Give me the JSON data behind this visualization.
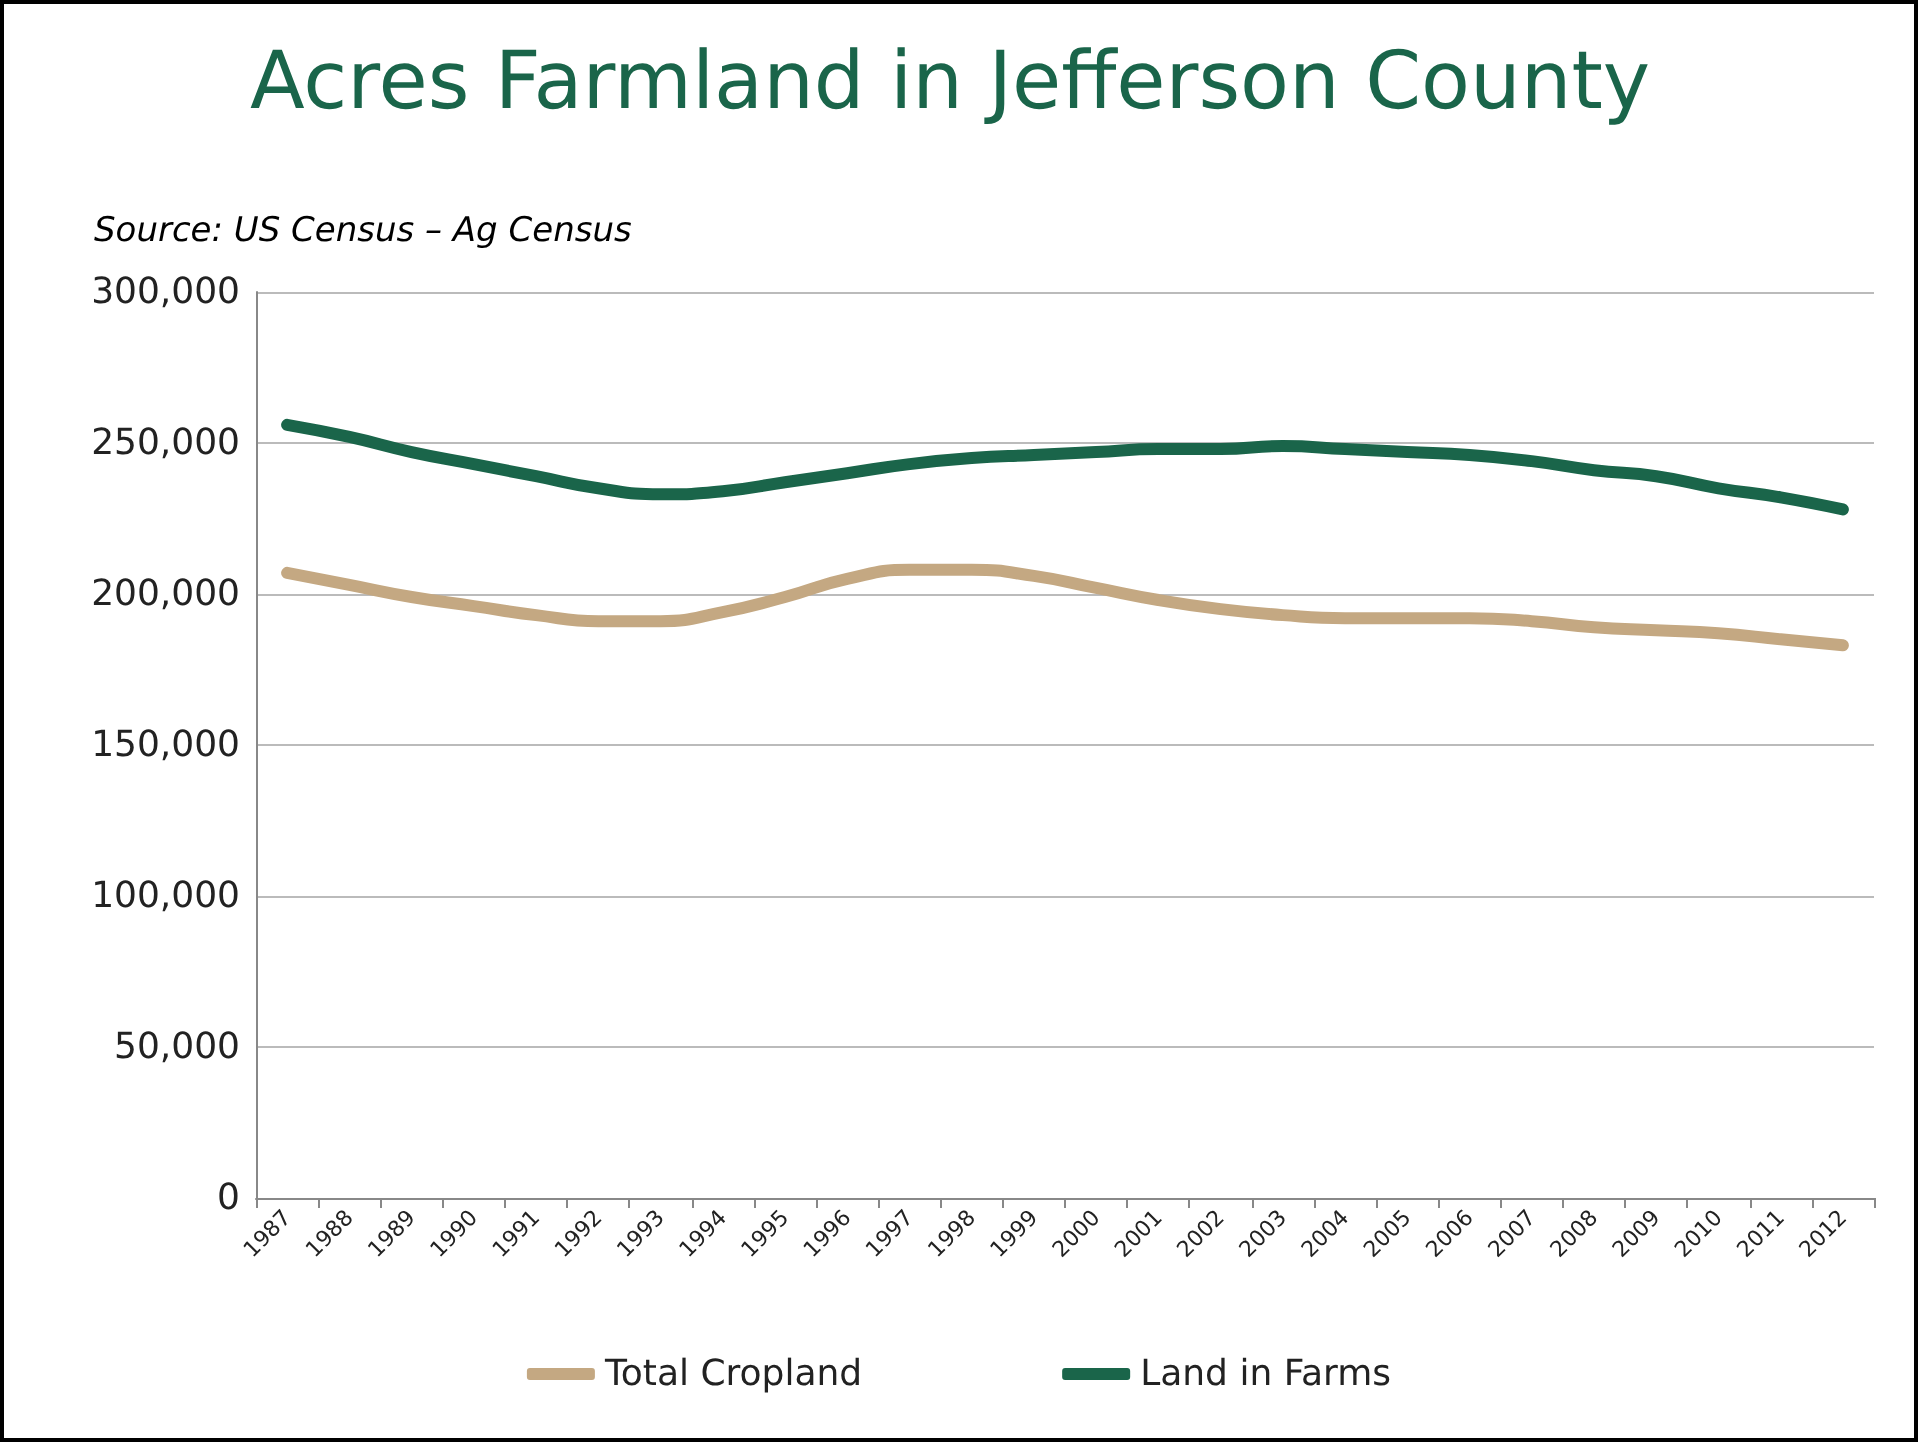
{
  "chart_data": {
    "type": "line",
    "title": "Acres Farmland in Jefferson County",
    "subtitle": "Source: US Census – Ag Census",
    "categories": [
      "1987",
      "1988",
      "1989",
      "1990",
      "1991",
      "1992",
      "1993",
      "1994",
      "1995",
      "1996",
      "1997",
      "1998",
      "1999",
      "2000",
      "2001",
      "2002",
      "2003",
      "2004",
      "2005",
      "2006",
      "2007",
      "2008",
      "2009",
      "2010",
      "2011",
      "2012"
    ],
    "series": [
      {
        "name": "Total Cropland",
        "color": "#c4a882",
        "values": [
          207000,
          203000,
          199000,
          196000,
          193000,
          191000,
          191000,
          194000,
          199000,
          205000,
          208000,
          208000,
          206000,
          202000,
          198000,
          195000,
          193000,
          192000,
          192000,
          192000,
          191000,
          189000,
          188000,
          187000,
          185000,
          183000
        ]
      },
      {
        "name": "Land in Farms",
        "color": "#1a654a",
        "values": [
          256000,
          252000,
          247000,
          243000,
          239000,
          235000,
          233000,
          234000,
          237000,
          240000,
          243000,
          245000,
          246000,
          247000,
          248000,
          248000,
          249000,
          248000,
          247000,
          246000,
          244000,
          241000,
          239000,
          235000,
          232000,
          228000
        ]
      }
    ],
    "ylim": [
      0,
      300000
    ],
    "yticks": [
      0,
      {
        "value": 50000,
        "label": "50,000"
      },
      {
        "value": 100000,
        "label": "100,000"
      },
      {
        "value": 150000,
        "label": "150,000"
      },
      {
        "value": 200000,
        "label": "200,000"
      },
      {
        "value": 250000,
        "label": "250,000"
      },
      {
        "value": 300000,
        "label": "300,000"
      }
    ],
    "grid": "y",
    "legend": "bottom",
    "marker": "none",
    "line_style": "solid"
  }
}
